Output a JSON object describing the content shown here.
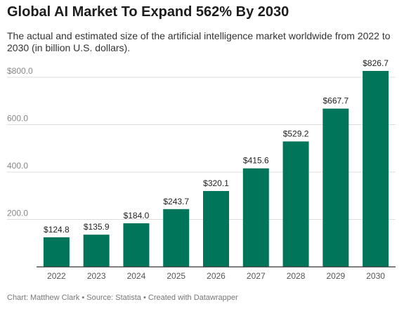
{
  "header": {
    "title": "Global AI Market To Expand 562% By 2030",
    "subtitle": "The actual and estimated size of the artificial intelligence market worldwide from 2022 to 2030 (in billion U.S. dollars)."
  },
  "footer": {
    "credit": "Chart: Matthew Clark • Source: Statista • Created with Datawrapper"
  },
  "colors": {
    "bar": "#00755a",
    "grid": "#dddddd",
    "axis": "#333333",
    "tick_text": "#888888",
    "label_text": "#222222"
  },
  "chart_data": {
    "type": "bar",
    "title": "Global AI Market To Expand 562% By 2030",
    "subtitle": "The actual and estimated size of the artificial intelligence market worldwide from 2022 to 2030 (in billion U.S. dollars).",
    "categories": [
      "2022",
      "2023",
      "2024",
      "2025",
      "2026",
      "2027",
      "2028",
      "2029",
      "2030"
    ],
    "values": [
      124.8,
      135.9,
      184.0,
      243.7,
      320.1,
      415.6,
      529.2,
      667.7,
      826.7
    ],
    "value_labels": [
      "$124.8",
      "$135.9",
      "$184.0",
      "$243.7",
      "$320.1",
      "$415.6",
      "$529.2",
      "$667.7",
      "$826.7"
    ],
    "ylim": [
      0,
      826.7
    ],
    "yticks": [
      200,
      400,
      600,
      800
    ],
    "ytick_labels": [
      "200.0",
      "400.0",
      "600.0",
      "$800.0"
    ],
    "grid": true,
    "xlabel": "",
    "ylabel": ""
  }
}
